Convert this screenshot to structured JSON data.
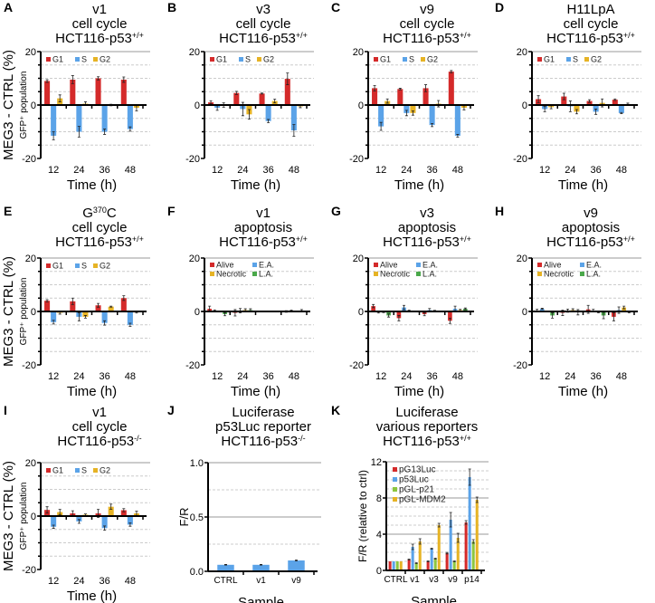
{
  "colors": {
    "G1": "#d42a2a",
    "S": "#5ba3e8",
    "G2": "#e6b325",
    "Alive": "#d42a2a",
    "E.A.": "#5ba3e8",
    "Necrotic": "#e6b325",
    "L.A.": "#4aa84a",
    "pG13Luc": "#d42a2a",
    "p53Luc": "#5ba3e8",
    "pGL-p21": "#8cc63f",
    "pGL-MDM2": "#e6b325"
  },
  "chart_data": [
    {
      "panel": "A",
      "kind": "cell",
      "type": "bar",
      "title_lines": [
        {
          "text": "v1"
        },
        {
          "text": "cell cycle"
        },
        {
          "text": "HCT116-p53",
          "sup": "+/+"
        }
      ],
      "ylabel": "MEG3 - CTRL (%)",
      "ylabel2": "GFP⁺ population",
      "xlabel": "Time (h)",
      "categories": [
        "12",
        "24",
        "36",
        "48"
      ],
      "ylim": [
        -20,
        20
      ],
      "yticks": [
        "20",
        "0",
        "-20"
      ],
      "series": [
        {
          "name": "G1",
          "values": [
            9,
            9.5,
            10,
            9.5
          ],
          "err": [
            0.5,
            1.5,
            0.6,
            1
          ]
        },
        {
          "name": "S",
          "values": [
            -11.5,
            -10,
            -10,
            -9
          ],
          "err": [
            1.5,
            2,
            1,
            0.8
          ]
        },
        {
          "name": "G2",
          "values": [
            2.5,
            0.5,
            0,
            -1
          ],
          "err": [
            1.3,
            0.7,
            0.3,
            1.2
          ]
        }
      ]
    },
    {
      "panel": "B",
      "kind": "cell",
      "type": "bar",
      "title_lines": [
        {
          "text": "v3"
        },
        {
          "text": "cell cycle"
        },
        {
          "text": "HCT116-p53",
          "sup": "+/+"
        }
      ],
      "xlabel": "Time (h)",
      "categories": [
        "12",
        "24",
        "36",
        "48"
      ],
      "ylim": [
        -20,
        20
      ],
      "yticks": [
        "20",
        "0",
        "-20"
      ],
      "series": [
        {
          "name": "G1",
          "values": [
            1,
            4.5,
            4.3,
            9.8
          ],
          "err": [
            0.6,
            0.6,
            0.2,
            2.2
          ]
        },
        {
          "name": "S",
          "values": [
            -1,
            -1.5,
            -6,
            -9.5
          ],
          "err": [
            1,
            2.5,
            0.6,
            2.2
          ]
        },
        {
          "name": "G2",
          "values": [
            0,
            -3.5,
            1.5,
            -0.5
          ],
          "err": [
            0.8,
            1.8,
            0.7,
            0.5
          ]
        }
      ]
    },
    {
      "panel": "C",
      "kind": "cell",
      "type": "bar",
      "title_lines": [
        {
          "text": "v9"
        },
        {
          "text": "cell cycle"
        },
        {
          "text": "HCT116-p53",
          "sup": "+/+"
        }
      ],
      "xlabel": "Time (h)",
      "categories": [
        "12",
        "24",
        "36",
        "48"
      ],
      "ylim": [
        -20,
        20
      ],
      "yticks": [
        "20",
        "0",
        "-20"
      ],
      "series": [
        {
          "name": "G1",
          "values": [
            6.3,
            6,
            6.3,
            12.5
          ],
          "err": [
            1,
            0.3,
            1.3,
            0.4
          ]
        },
        {
          "name": "S",
          "values": [
            -8,
            -3,
            -7.5,
            -11.5
          ],
          "err": [
            1.5,
            1,
            0.6,
            0.5
          ]
        },
        {
          "name": "G2",
          "values": [
            1.5,
            -3,
            0.5,
            -1
          ],
          "err": [
            0.8,
            0.8,
            1.2,
            0.8
          ]
        }
      ]
    },
    {
      "panel": "D",
      "kind": "cell",
      "type": "bar",
      "title_lines": [
        {
          "text": "H11LpA"
        },
        {
          "text": "cell cycle"
        },
        {
          "text": "HCT116-p53",
          "sup": "+/+"
        }
      ],
      "xlabel": "Time (h)",
      "categories": [
        "12",
        "24",
        "36",
        "48"
      ],
      "ylim": [
        -20,
        20
      ],
      "yticks": [
        "20",
        "0",
        "-20"
      ],
      "series": [
        {
          "name": "G1",
          "values": [
            2.2,
            3.2,
            1.5,
            2
          ],
          "err": [
            1.3,
            1.2,
            0.5,
            0.3
          ]
        },
        {
          "name": "S",
          "values": [
            -1.5,
            -0.5,
            -2.5,
            -3
          ],
          "err": [
            1,
            2,
            1,
            0.2
          ]
        },
        {
          "name": "G2",
          "values": [
            -0.8,
            -2.5,
            0.8,
            0.3
          ],
          "err": [
            0.6,
            0.8,
            1.5,
            0.4
          ]
        }
      ]
    },
    {
      "panel": "E",
      "kind": "cell",
      "type": "bar",
      "title_lines": [
        {
          "text": "G",
          "sup": "370",
          "tail": "C"
        },
        {
          "text": "cell cycle"
        },
        {
          "text": "HCT116-p53",
          "sup": "+/+"
        }
      ],
      "ylabel": "MEG3 - CTRL (%)",
      "ylabel2": "GFP⁺ population",
      "xlabel": "Time (h)",
      "categories": [
        "12",
        "24",
        "36",
        "48"
      ],
      "ylim": [
        -20,
        20
      ],
      "yticks": [
        "20",
        "0",
        "-20"
      ],
      "series": [
        {
          "name": "G1",
          "values": [
            4,
            3.8,
            2.3,
            5
          ],
          "err": [
            0.4,
            1.2,
            0.7,
            0.9
          ]
        },
        {
          "name": "S",
          "values": [
            -4,
            -2,
            -4.3,
            -5
          ],
          "err": [
            0.7,
            1.5,
            0.8,
            0.6
          ]
        },
        {
          "name": "G2",
          "values": [
            -0.5,
            -2,
            1.8,
            -0.3
          ],
          "err": [
            0.5,
            0.5,
            0.2,
            0.3
          ]
        }
      ]
    },
    {
      "panel": "F",
      "kind": "apop",
      "type": "bar",
      "title_lines": [
        {
          "text": "v1"
        },
        {
          "text": "apoptosis"
        },
        {
          "text": "HCT116-p53",
          "sup": "+/+"
        }
      ],
      "xlabel": "Time (h)",
      "categories": [
        "12",
        "24",
        "36",
        "48"
      ],
      "ylim": [
        -20,
        20
      ],
      "yticks": [
        "20",
        "0",
        "-20"
      ],
      "series": [
        {
          "name": "Alive",
          "values": [
            1,
            -0.5,
            0,
            0
          ],
          "err": [
            1,
            1.2,
            0.2,
            0.3
          ]
        },
        {
          "name": "E.A.",
          "values": [
            0.3,
            0.3,
            0,
            0.2
          ],
          "err": [
            0.3,
            0.8,
            0.1,
            0.3
          ]
        },
        {
          "name": "Necrotic",
          "values": [
            0,
            0.5,
            0,
            0
          ],
          "err": [
            0.2,
            0.5,
            0.1,
            0.2
          ]
        },
        {
          "name": "L.A.",
          "values": [
            -1,
            0.5,
            0,
            0.3
          ],
          "err": [
            0.6,
            0.5,
            0.1,
            0.4
          ]
        }
      ]
    },
    {
      "panel": "G",
      "kind": "apop",
      "type": "bar",
      "title_lines": [
        {
          "text": "v3"
        },
        {
          "text": "apoptosis"
        },
        {
          "text": "HCT116-p53",
          "sup": "+/+"
        }
      ],
      "xlabel": "Time (h)",
      "categories": [
        "12",
        "24",
        "36",
        "48"
      ],
      "ylim": [
        -20,
        20
      ],
      "yticks": [
        "20",
        "0",
        "-20"
      ],
      "series": [
        {
          "name": "Alive",
          "values": [
            2,
            -2.5,
            -1,
            -3.5
          ],
          "err": [
            0.6,
            1,
            0.6,
            1
          ]
        },
        {
          "name": "E.A.",
          "values": [
            -0.3,
            1.5,
            0.5,
            1
          ],
          "err": [
            0.3,
            0.8,
            0.6,
            1
          ]
        },
        {
          "name": "Necrotic",
          "values": [
            -0.2,
            0.3,
            0.2,
            0.5
          ],
          "err": [
            0.2,
            0.2,
            0.2,
            0.3
          ]
        },
        {
          "name": "L.A.",
          "values": [
            -1.5,
            0,
            0,
            1
          ],
          "err": [
            0.6,
            0.2,
            0.1,
            0.3
          ]
        }
      ]
    },
    {
      "panel": "H",
      "kind": "apop",
      "type": "bar",
      "title_lines": [
        {
          "text": "v9"
        },
        {
          "text": "apoptosis"
        },
        {
          "text": "HCT116-p53",
          "sup": "+/+"
        }
      ],
      "xlabel": "Time (h)",
      "categories": [
        "12",
        "24",
        "36",
        "48"
      ],
      "ylim": [
        -20,
        20
      ],
      "yticks": [
        "20",
        "0",
        "-20"
      ],
      "series": [
        {
          "name": "Alive",
          "values": [
            0.3,
            -0.5,
            0.8,
            -2
          ],
          "err": [
            0.5,
            1,
            1.5,
            1.5
          ]
        },
        {
          "name": "E.A.",
          "values": [
            1,
            0.3,
            0.3,
            0.5
          ],
          "err": [
            0.2,
            0.6,
            0.5,
            1.2
          ]
        },
        {
          "name": "Necrotic",
          "values": [
            0,
            0.5,
            -0.2,
            1.5
          ],
          "err": [
            0.2,
            0.5,
            0.3,
            0.5
          ]
        },
        {
          "name": "L.A.",
          "values": [
            -1.5,
            -0.3,
            -1.5,
            -0.2
          ],
          "err": [
            1,
            1,
            1.2,
            0.3
          ]
        }
      ]
    },
    {
      "panel": "I",
      "kind": "cell",
      "type": "bar",
      "title_lines": [
        {
          "text": "v1"
        },
        {
          "text": "cell cycle"
        },
        {
          "text": "HCT116-p53",
          "sup": "-/-"
        }
      ],
      "ylabel": "MEG3 - CTRL (%)",
      "ylabel2": "GFP⁺ population",
      "xlabel": "Time (h)",
      "categories": [
        "12",
        "24",
        "36",
        "48"
      ],
      "ylim": [
        -20,
        20
      ],
      "yticks": [
        "20",
        "0",
        "-20"
      ],
      "series": [
        {
          "name": "G1",
          "values": [
            2.3,
            1,
            1,
            2.2
          ],
          "err": [
            1.2,
            1,
            1.5,
            0.6
          ]
        },
        {
          "name": "S",
          "values": [
            -4,
            -2,
            -4.5,
            -3.2
          ],
          "err": [
            0.6,
            0.7,
            0.8,
            0.6
          ]
        },
        {
          "name": "G2",
          "values": [
            1.5,
            0.5,
            3.5,
            1
          ],
          "err": [
            1,
            0.3,
            1,
            0.8
          ]
        }
      ]
    },
    {
      "panel": "J",
      "kind": "lucJ",
      "type": "bar",
      "title_lines": [
        {
          "text": "Luciferase"
        },
        {
          "text": "p53Luc reporter"
        },
        {
          "text": "HCT116-p53",
          "sup": "-/-"
        }
      ],
      "ylabel": "F/R",
      "xlabel": "Sample",
      "categories": [
        "CTRL",
        "v1",
        "v9"
      ],
      "ylim": [
        0,
        1
      ],
      "yticks": [
        "1.0",
        "0.5",
        "0.0"
      ],
      "series": [
        {
          "name": "p53Luc",
          "values": [
            0.06,
            0.06,
            0.1
          ],
          "err": [
            0.003,
            0.003,
            0.004
          ]
        }
      ]
    },
    {
      "panel": "K",
      "kind": "lucK",
      "type": "bar",
      "title_lines": [
        {
          "text": "Luciferase"
        },
        {
          "text": "various reporters"
        },
        {
          "text": "HCT116-p53",
          "sup": "+/+"
        }
      ],
      "ylabel": "F/R (relative to ctrl)",
      "xlabel": "Sample",
      "categories": [
        "CTRL",
        "v1",
        "v3",
        "v9",
        "p14"
      ],
      "ylim": [
        0,
        12
      ],
      "yticks": [
        "12",
        "8",
        "4",
        "0"
      ],
      "series": [
        {
          "name": "pG13Luc",
          "values": [
            1,
            1.2,
            1,
            1.9,
            5.3
          ],
          "err": [
            0,
            0.05,
            0.05,
            0.08,
            0.2
          ]
        },
        {
          "name": "p53Luc",
          "values": [
            1,
            2.6,
            2.4,
            5.6,
            10.3
          ],
          "err": [
            0,
            0.3,
            0.05,
            0.8,
            0.9
          ]
        },
        {
          "name": "pGL-p21",
          "values": [
            1,
            0.8,
            1.3,
            1,
            3.2
          ],
          "err": [
            0,
            0.05,
            0.05,
            0.05,
            0.2
          ]
        },
        {
          "name": "pGL-MDM2",
          "values": [
            1,
            3.2,
            5,
            3.6,
            7.8
          ],
          "err": [
            0,
            0.3,
            0.2,
            0.5,
            0.3
          ]
        }
      ]
    }
  ]
}
